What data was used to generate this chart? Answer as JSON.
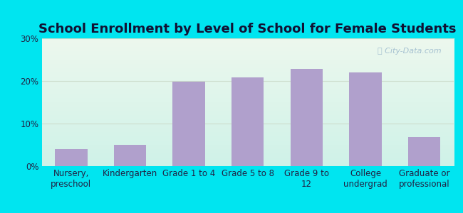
{
  "title": "School Enrollment by Level of School for Female Students",
  "categories": [
    "Nursery,\npreschool",
    "Kindergarten",
    "Grade 1 to 4",
    "Grade 5 to 8",
    "Grade 9 to\n12",
    "College\nundergrad",
    "Graduate or\nprofessional"
  ],
  "values": [
    4.0,
    5.0,
    19.8,
    20.8,
    22.8,
    22.0,
    6.8
  ],
  "bar_color": "#b0a0cc",
  "ylim": [
    0,
    30
  ],
  "yticks": [
    0,
    10,
    20,
    30
  ],
  "ytick_labels": [
    "0%",
    "10%",
    "20%",
    "30%"
  ],
  "background_outer": "#00e5f0",
  "background_inner_top": "#edf8ee",
  "background_inner_bottom": "#cff2e8",
  "grid_color": "#ccddcc",
  "watermark": "ⓘ City-Data.com",
  "title_fontsize": 13,
  "tick_fontsize": 8.5,
  "title_color": "#111133"
}
